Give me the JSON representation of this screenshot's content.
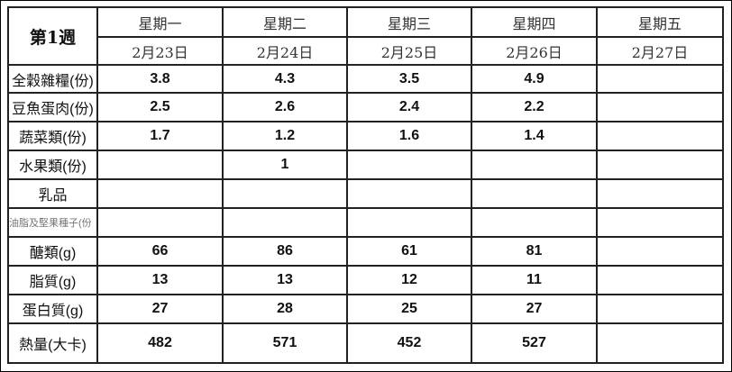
{
  "week_label": "第1週",
  "days": [
    {
      "weekday": "星期一",
      "date": "2月23日"
    },
    {
      "weekday": "星期二",
      "date": "2月24日"
    },
    {
      "weekday": "星期三",
      "date": "2月25日"
    },
    {
      "weekday": "星期四",
      "date": "2月26日"
    },
    {
      "weekday": "星期五",
      "date": "2月27日"
    }
  ],
  "rows": [
    {
      "label": "全穀雜糧(份)",
      "values": [
        "3.8",
        "4.3",
        "3.5",
        "4.9",
        ""
      ]
    },
    {
      "label": "豆魚蛋肉(份)",
      "values": [
        "2.5",
        "2.6",
        "2.4",
        "2.2",
        ""
      ]
    },
    {
      "label": "蔬菜類(份)",
      "values": [
        "1.7",
        "1.2",
        "1.6",
        "1.4",
        ""
      ]
    },
    {
      "label": "水果類(份)",
      "values": [
        "",
        "1",
        "",
        "",
        ""
      ]
    },
    {
      "label": "乳品",
      "values": [
        "",
        "",
        "",
        "",
        ""
      ]
    },
    {
      "label": "油脂及堅果種子(份",
      "values": [
        "",
        "",
        "",
        "",
        ""
      ]
    },
    {
      "label": "醣類(g)",
      "values": [
        "66",
        "86",
        "61",
        "81",
        ""
      ]
    },
    {
      "label": "脂質(g)",
      "values": [
        "13",
        "13",
        "12",
        "11",
        ""
      ]
    },
    {
      "label": "蛋白質(g)",
      "values": [
        "27",
        "28",
        "25",
        "27",
        ""
      ]
    },
    {
      "label": "熱量(大卡)",
      "values": [
        "482",
        "571",
        "452",
        "527",
        ""
      ]
    }
  ]
}
